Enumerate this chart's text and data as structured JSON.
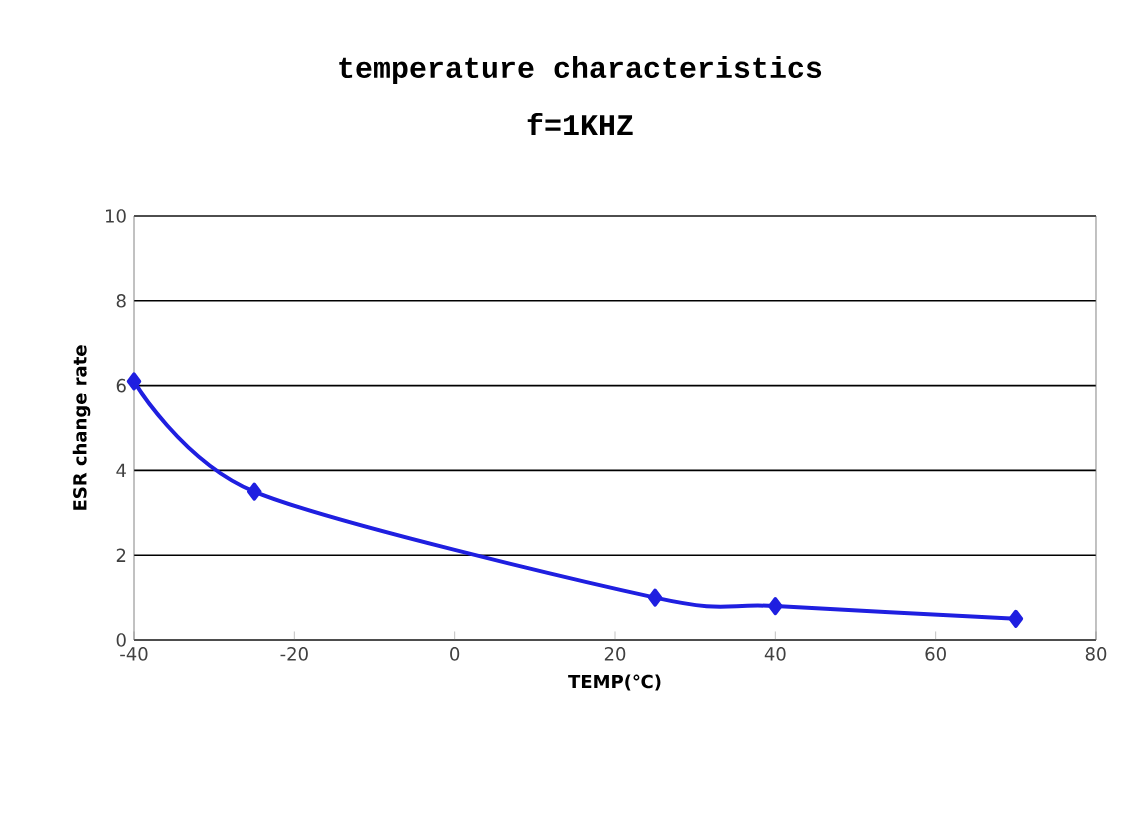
{
  "chart_data": {
    "type": "line",
    "title": "temperature characteristics",
    "subtitle": "f=1KHZ",
    "xlabel": "TEMP(℃)",
    "ylabel": "ESR change rate",
    "x": [
      -40,
      -25,
      25,
      40,
      70
    ],
    "series": [
      {
        "color": "#1f1fe0",
        "values": [
          6.1,
          3.5,
          1.0,
          0.8,
          0.5
        ]
      }
    ],
    "xlim": [
      -40,
      80
    ],
    "xticks": [
      -40,
      -20,
      0,
      20,
      40,
      60,
      80
    ],
    "ylim": [
      0,
      10
    ],
    "yticks": [
      0,
      2,
      4,
      6,
      8,
      10
    ],
    "grid": "y",
    "marker": "diamond",
    "line_style": "solid"
  }
}
